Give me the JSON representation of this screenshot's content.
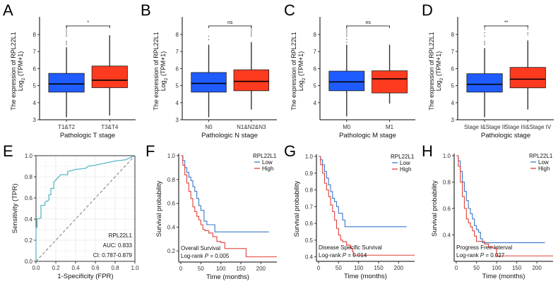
{
  "colors": {
    "box_low": "#1f5cff",
    "box_high": "#ff3b1f",
    "km_low": "#3a78c8",
    "km_high": "#e0413a",
    "roc_line": "#5bb8c6",
    "grid": "#e6e6e6"
  },
  "chart_data": [
    {
      "panel": "A",
      "type": "box",
      "xlabel": "Pathologic T stage",
      "ylabel_line1": "The expression of RPL22L1",
      "ylabel_line2": "Log2 (TPM+1)",
      "ylim": [
        3,
        8.7
      ],
      "yticks": [
        "3",
        "4",
        "5",
        "6",
        "7",
        "8"
      ],
      "significance": "*",
      "categories": [
        "T1&T2",
        "T3&T4"
      ],
      "boxes": [
        {
          "q1": 4.62,
          "median": 5.1,
          "q3": 5.72,
          "whisker_low": 3.15,
          "whisker_high": 7.25,
          "outliers": [
            7.4,
            7.5,
            7.6,
            7.9,
            8.0,
            8.1,
            8.2,
            8.3,
            8.4,
            8.5
          ]
        },
        {
          "q1": 4.88,
          "median": 5.32,
          "q3": 6.15,
          "whisker_low": 3.25,
          "whisker_high": 7.95,
          "outliers": [
            8.5
          ]
        }
      ]
    },
    {
      "panel": "B",
      "type": "box",
      "xlabel": "Pathologic N stage",
      "ylabel_line1": "The expression of RPL22L1",
      "ylabel_line2": "Log2 (TPM+1)",
      "ylim": [
        3,
        8.7
      ],
      "yticks": [
        "3",
        "4",
        "5",
        "6",
        "7",
        "8"
      ],
      "significance": "ns",
      "categories": [
        "N0",
        "N1&N2&N3"
      ],
      "boxes": [
        {
          "q1": 4.62,
          "median": 5.13,
          "q3": 5.77,
          "whisker_low": 3.15,
          "whisker_high": 7.4,
          "outliers": [
            7.7,
            7.9
          ]
        },
        {
          "q1": 4.7,
          "median": 5.25,
          "q3": 5.93,
          "whisker_low": 3.6,
          "whisker_high": 7.55,
          "outliers": [
            7.9,
            8.0,
            8.1,
            8.2,
            8.3,
            8.4,
            8.5
          ]
        }
      ]
    },
    {
      "panel": "C",
      "type": "box",
      "xlabel": "Pathologic M stage",
      "ylabel_line1": "The expression of RPL22L1",
      "ylabel_line2": "Log2 (TPM+1)",
      "ylim": [
        3,
        8.7
      ],
      "yticks": [
        "4",
        "5",
        "6",
        "7",
        "8"
      ],
      "significance": "ns",
      "categories": [
        "M0",
        "M1"
      ],
      "boxes": [
        {
          "q1": 4.7,
          "median": 5.22,
          "q3": 5.85,
          "whisker_low": 3.2,
          "whisker_high": 7.4,
          "outliers": [
            7.55,
            7.7,
            7.9,
            8.0,
            8.1,
            8.2,
            8.3,
            8.4,
            8.5
          ]
        },
        {
          "q1": 4.57,
          "median": 5.4,
          "q3": 5.87,
          "whisker_low": 3.95,
          "whisker_high": 7.4,
          "outliers": []
        }
      ]
    },
    {
      "panel": "D",
      "type": "box",
      "xlabel": "Pathologic stage",
      "ylabel_line1": "The expression of RPL22L1",
      "ylabel_line2": "Log2 (TPM+1)",
      "ylim": [
        3,
        8.7
      ],
      "yticks": [
        "3",
        "4",
        "5",
        "6",
        "7",
        "8"
      ],
      "significance": "**",
      "categories": [
        "Stage I&Stage II",
        "Stage III&Stage IV"
      ],
      "boxes": [
        {
          "q1": 4.62,
          "median": 5.08,
          "q3": 5.7,
          "whisker_low": 3.15,
          "whisker_high": 7.2,
          "outliers": [
            7.4,
            7.5,
            7.6,
            7.9,
            8.1,
            8.3,
            8.5
          ]
        },
        {
          "q1": 4.87,
          "median": 5.38,
          "q3": 6.07,
          "whisker_low": 3.6,
          "whisker_high": 7.65,
          "outliers": [
            8.0,
            8.1,
            8.3,
            8.5
          ]
        }
      ]
    },
    {
      "panel": "E",
      "type": "line",
      "subtype": "roc",
      "xlabel": "1-Specificity (FPR)",
      "ylabel": "Sensitivity (TPR)",
      "xlim": [
        0,
        1
      ],
      "ylim": [
        0,
        1
      ],
      "xticks": [
        "0.0",
        "0.2",
        "0.4",
        "0.6",
        "0.8",
        "1.0"
      ],
      "yticks": [
        "0.0",
        "0.2",
        "0.4",
        "0.6",
        "0.8",
        "1.0"
      ],
      "grid": true,
      "annotations": [
        "RPL22L1",
        "AUC: 0.833",
        "CI: 0.787-0.879"
      ],
      "series": [
        {
          "name": "RPL22L1",
          "points": [
            [
              0,
              0
            ],
            [
              0,
              0.32
            ],
            [
              0.01,
              0.32
            ],
            [
              0.01,
              0.4
            ],
            [
              0.05,
              0.41
            ],
            [
              0.05,
              0.53
            ],
            [
              0.09,
              0.53
            ],
            [
              0.09,
              0.56
            ],
            [
              0.13,
              0.58
            ],
            [
              0.13,
              0.63
            ],
            [
              0.15,
              0.63
            ],
            [
              0.15,
              0.69
            ],
            [
              0.18,
              0.69
            ],
            [
              0.18,
              0.75
            ],
            [
              0.2,
              0.77
            ],
            [
              0.23,
              0.8
            ],
            [
              0.25,
              0.82
            ],
            [
              0.32,
              0.82
            ],
            [
              0.32,
              0.85
            ],
            [
              0.4,
              0.87
            ],
            [
              0.5,
              0.88
            ],
            [
              0.53,
              0.9
            ],
            [
              0.6,
              0.91
            ],
            [
              0.7,
              0.93
            ],
            [
              0.8,
              0.95
            ],
            [
              0.9,
              0.96
            ],
            [
              0.95,
              0.98
            ],
            [
              1,
              1
            ]
          ]
        },
        {
          "name": "reference",
          "points": [
            [
              0,
              0
            ],
            [
              1,
              1
            ]
          ]
        }
      ]
    },
    {
      "panel": "F",
      "type": "line",
      "subtype": "kaplan-meier",
      "xlabel": "Time (months)",
      "ylabel": "Survival probability",
      "xlim": [
        0,
        240
      ],
      "ylim": [
        0.13,
        1.0
      ],
      "xticks": [
        "0",
        "50",
        "100",
        "150",
        "200"
      ],
      "yticks": [
        "0.2",
        "0.4",
        "0.6",
        "0.8",
        "1.0"
      ],
      "legend_title": "RPL22L1",
      "legend_position": "top-right",
      "annotation_line1": "Overall Survival",
      "annotation_line2_prefix": "Log-rank ",
      "annotation_line2_p": "P",
      "annotation_line2_value": " = 0.005",
      "series": [
        {
          "name": "Low",
          "points": [
            [
              0,
              1
            ],
            [
              5,
              0.96
            ],
            [
              10,
              0.9
            ],
            [
              15,
              0.86
            ],
            [
              20,
              0.82
            ],
            [
              25,
              0.79
            ],
            [
              30,
              0.74
            ],
            [
              35,
              0.7
            ],
            [
              40,
              0.64
            ],
            [
              45,
              0.58
            ],
            [
              50,
              0.54
            ],
            [
              55,
              0.54
            ],
            [
              58,
              0.45
            ],
            [
              65,
              0.42
            ],
            [
              85,
              0.42
            ],
            [
              85,
              0.36
            ],
            [
              220,
              0.36
            ]
          ]
        },
        {
          "name": "High",
          "points": [
            [
              0,
              1
            ],
            [
              5,
              0.92
            ],
            [
              10,
              0.84
            ],
            [
              15,
              0.77
            ],
            [
              20,
              0.7
            ],
            [
              25,
              0.64
            ],
            [
              30,
              0.57
            ],
            [
              35,
              0.53
            ],
            [
              40,
              0.49
            ],
            [
              45,
              0.46
            ],
            [
              50,
              0.42
            ],
            [
              55,
              0.38
            ],
            [
              60,
              0.37
            ],
            [
              70,
              0.35
            ],
            [
              80,
              0.32
            ],
            [
              90,
              0.28
            ],
            [
              100,
              0.27
            ],
            [
              110,
              0.22
            ],
            [
              163,
              0.22
            ],
            [
              163,
              0.15
            ],
            [
              240,
              0.15
            ]
          ]
        }
      ]
    },
    {
      "panel": "G",
      "type": "line",
      "subtype": "kaplan-meier",
      "xlabel": "Time (months)",
      "ylabel": "Survival probability",
      "xlim": [
        0,
        240
      ],
      "ylim": [
        0.39,
        1.0
      ],
      "xticks": [
        "0",
        "50",
        "100",
        "150",
        "200"
      ],
      "yticks": [
        "0.4",
        "0.5",
        "0.6",
        "0.7",
        "0.8",
        "0.9",
        "1.0"
      ],
      "legend_title": "RPL22L1",
      "legend_position": "top-right",
      "annotation_line1": "Disease Specific Survival",
      "annotation_line2_prefix": "Log-rank ",
      "annotation_line2_p": "P",
      "annotation_line2_value": " = 0.014",
      "series": [
        {
          "name": "Low",
          "points": [
            [
              0,
              1
            ],
            [
              5,
              0.98
            ],
            [
              10,
              0.95
            ],
            [
              15,
              0.91
            ],
            [
              20,
              0.87
            ],
            [
              25,
              0.83
            ],
            [
              30,
              0.79
            ],
            [
              35,
              0.75
            ],
            [
              40,
              0.73
            ],
            [
              45,
              0.7
            ],
            [
              50,
              0.66
            ],
            [
              58,
              0.66
            ],
            [
              60,
              0.62
            ],
            [
              65,
              0.62
            ],
            [
              66,
              0.58
            ],
            [
              220,
              0.58
            ]
          ]
        },
        {
          "name": "High",
          "points": [
            [
              0,
              1
            ],
            [
              5,
              0.95
            ],
            [
              10,
              0.9
            ],
            [
              15,
              0.84
            ],
            [
              20,
              0.8
            ],
            [
              25,
              0.76
            ],
            [
              30,
              0.71
            ],
            [
              35,
              0.67
            ],
            [
              40,
              0.62
            ],
            [
              45,
              0.57
            ],
            [
              50,
              0.53
            ],
            [
              55,
              0.5
            ],
            [
              60,
              0.49
            ],
            [
              70,
              0.47
            ],
            [
              80,
              0.45
            ],
            [
              85,
              0.43
            ],
            [
              87,
              0.41
            ],
            [
              240,
              0.41
            ]
          ]
        }
      ]
    },
    {
      "panel": "H",
      "type": "line",
      "subtype": "kaplan-meier",
      "xlabel": "Time (months)",
      "ylabel": "Survival probability",
      "xlim": [
        0,
        240
      ],
      "ylim": [
        0.22,
        1.0
      ],
      "xticks": [
        "0",
        "50",
        "100",
        "150",
        "200"
      ],
      "yticks": [
        "0.4",
        "0.6",
        "0.8",
        "1.0"
      ],
      "legend_title": "RPL22L1",
      "legend_position": "top-right",
      "annotation_line1": "Progress Free Interval",
      "annotation_line2_prefix": "Log-rank ",
      "annotation_line2_p": "P",
      "annotation_line2_value": " = 0.027",
      "series": [
        {
          "name": "Low",
          "points": [
            [
              0,
              1
            ],
            [
              5,
              0.96
            ],
            [
              10,
              0.88
            ],
            [
              15,
              0.8
            ],
            [
              20,
              0.73
            ],
            [
              25,
              0.66
            ],
            [
              30,
              0.6
            ],
            [
              35,
              0.56
            ],
            [
              40,
              0.52
            ],
            [
              45,
              0.47
            ],
            [
              50,
              0.44
            ],
            [
              55,
              0.42
            ],
            [
              60,
              0.37
            ],
            [
              65,
              0.34
            ],
            [
              220,
              0.34
            ]
          ]
        },
        {
          "name": "High",
          "points": [
            [
              0,
              1
            ],
            [
              5,
              0.92
            ],
            [
              10,
              0.8
            ],
            [
              15,
              0.69
            ],
            [
              20,
              0.6
            ],
            [
              25,
              0.52
            ],
            [
              30,
              0.49
            ],
            [
              35,
              0.46
            ],
            [
              40,
              0.43
            ],
            [
              45,
              0.39
            ],
            [
              50,
              0.35
            ],
            [
              60,
              0.35
            ],
            [
              70,
              0.33
            ],
            [
              80,
              0.31
            ],
            [
              90,
              0.3
            ],
            [
              100,
              0.3
            ],
            [
              100,
              0.24
            ],
            [
              240,
              0.24
            ]
          ]
        }
      ]
    }
  ],
  "panel_letters": [
    "A",
    "B",
    "C",
    "D",
    "E",
    "F",
    "G",
    "H"
  ]
}
